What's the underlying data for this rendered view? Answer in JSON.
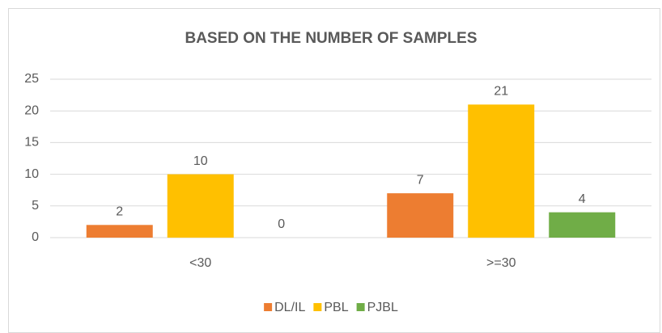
{
  "chart_data": {
    "type": "bar",
    "title": "BASED ON THE NUMBER OF SAMPLES",
    "categories": [
      "<30",
      ">=30"
    ],
    "series": [
      {
        "name": "DL/IL",
        "color": "#ED7D31",
        "values": [
          2,
          7
        ]
      },
      {
        "name": "PBL",
        "color": "#FFC000",
        "values": [
          10,
          21
        ]
      },
      {
        "name": "PJBL",
        "color": "#70AD47",
        "values": [
          0,
          4
        ]
      }
    ],
    "ylim": [
      0,
      25
    ],
    "yticks": [
      0,
      5,
      10,
      15,
      20,
      25
    ],
    "grid": true,
    "legend": "bottom"
  }
}
